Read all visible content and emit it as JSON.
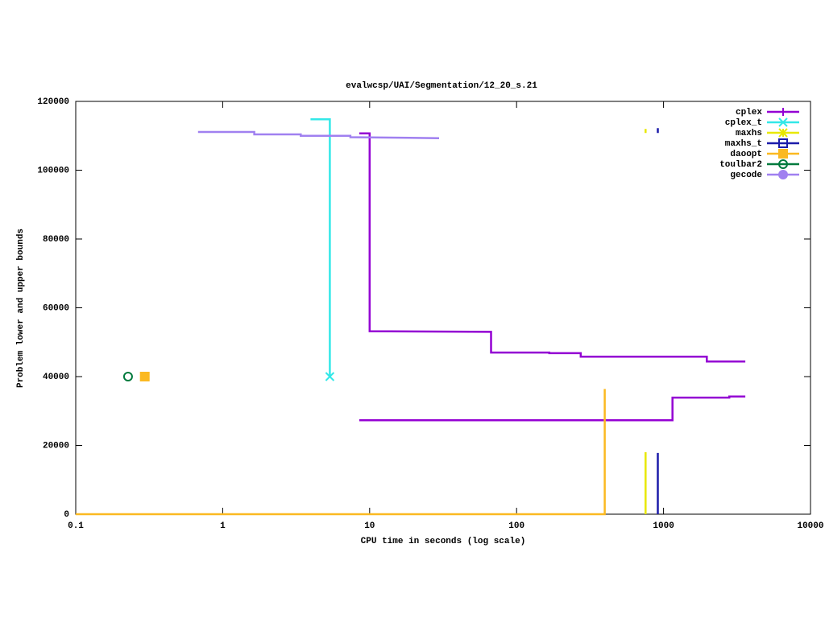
{
  "chart_data": {
    "type": "line",
    "title": "evalwcsp/UAI/Segmentation/12_20_s.21",
    "x_label": "CPU time in seconds (log scale)",
    "y_label": "Problem lower and upper bounds",
    "log_x": true,
    "xlim": [
      0.1,
      10000
    ],
    "xticks": [
      0.1,
      1,
      10,
      100,
      1000,
      10000
    ],
    "ylim": [
      0,
      120000
    ],
    "yticks": [
      0,
      20000,
      40000,
      60000,
      80000,
      100000,
      120000
    ],
    "grid": false,
    "legend": "top-right",
    "series": [
      {
        "name": "cplex",
        "color": "#9400d3",
        "marker": "plus",
        "x": [
          8.5,
          10,
          10,
          67,
          67,
          167,
          167,
          273,
          273,
          1970,
          1970,
          3600,
          null,
          8.5,
          1150,
          1150,
          2800,
          2800,
          3600
        ],
        "values": [
          110700,
          110700,
          53200,
          53000,
          47000,
          47000,
          46800,
          46800,
          45800,
          45800,
          44400,
          44400,
          null,
          27300,
          27300,
          33900,
          33900,
          34200,
          34200
        ],
        "points": {
          "x": [],
          "values": []
        }
      },
      {
        "name": "cplex_t",
        "color": "#33e8e8",
        "marker": "cross",
        "x": [
          3.96,
          5.36,
          5.36
        ],
        "values": [
          114800,
          114800,
          40000
        ],
        "points": {
          "x": [
            5.36
          ],
          "values": [
            40000
          ]
        }
      },
      {
        "name": "maxhs",
        "color": "#e8e800",
        "marker": "star",
        "x": [
          755,
          755,
          null,
          755,
          755
        ],
        "values": [
          0,
          18000,
          null,
          110800,
          112000
        ],
        "points": {
          "x": [],
          "values": []
        }
      },
      {
        "name": "maxhs_t",
        "color": "#1c1caa",
        "marker": "box",
        "x": [
          914,
          914,
          null,
          914,
          914
        ],
        "values": [
          0,
          17800,
          null,
          110800,
          112200
        ],
        "points": {
          "x": [],
          "values": []
        }
      },
      {
        "name": "daoopt",
        "color": "#fbb921",
        "marker": "filled-box",
        "x": [
          0.1,
          398,
          398
        ],
        "values": [
          0,
          0,
          36400
        ],
        "points": {
          "x": [
            0.295
          ],
          "values": [
            40000
          ]
        }
      },
      {
        "name": "toulbar2",
        "color": "#007a3d",
        "marker": "circle",
        "x": [],
        "values": [],
        "points": {
          "x": [
            0.227
          ],
          "values": [
            40000
          ]
        }
      },
      {
        "name": "gecode",
        "color": "#a080f0",
        "marker": "filled-circle",
        "x": [
          0.68,
          1.64,
          1.64,
          3.4,
          3.4,
          7.4,
          7.4,
          29.7
        ],
        "values": [
          111100,
          111100,
          110400,
          110400,
          110000,
          110000,
          109600,
          109300
        ],
        "points": {
          "x": [],
          "values": []
        }
      }
    ]
  }
}
